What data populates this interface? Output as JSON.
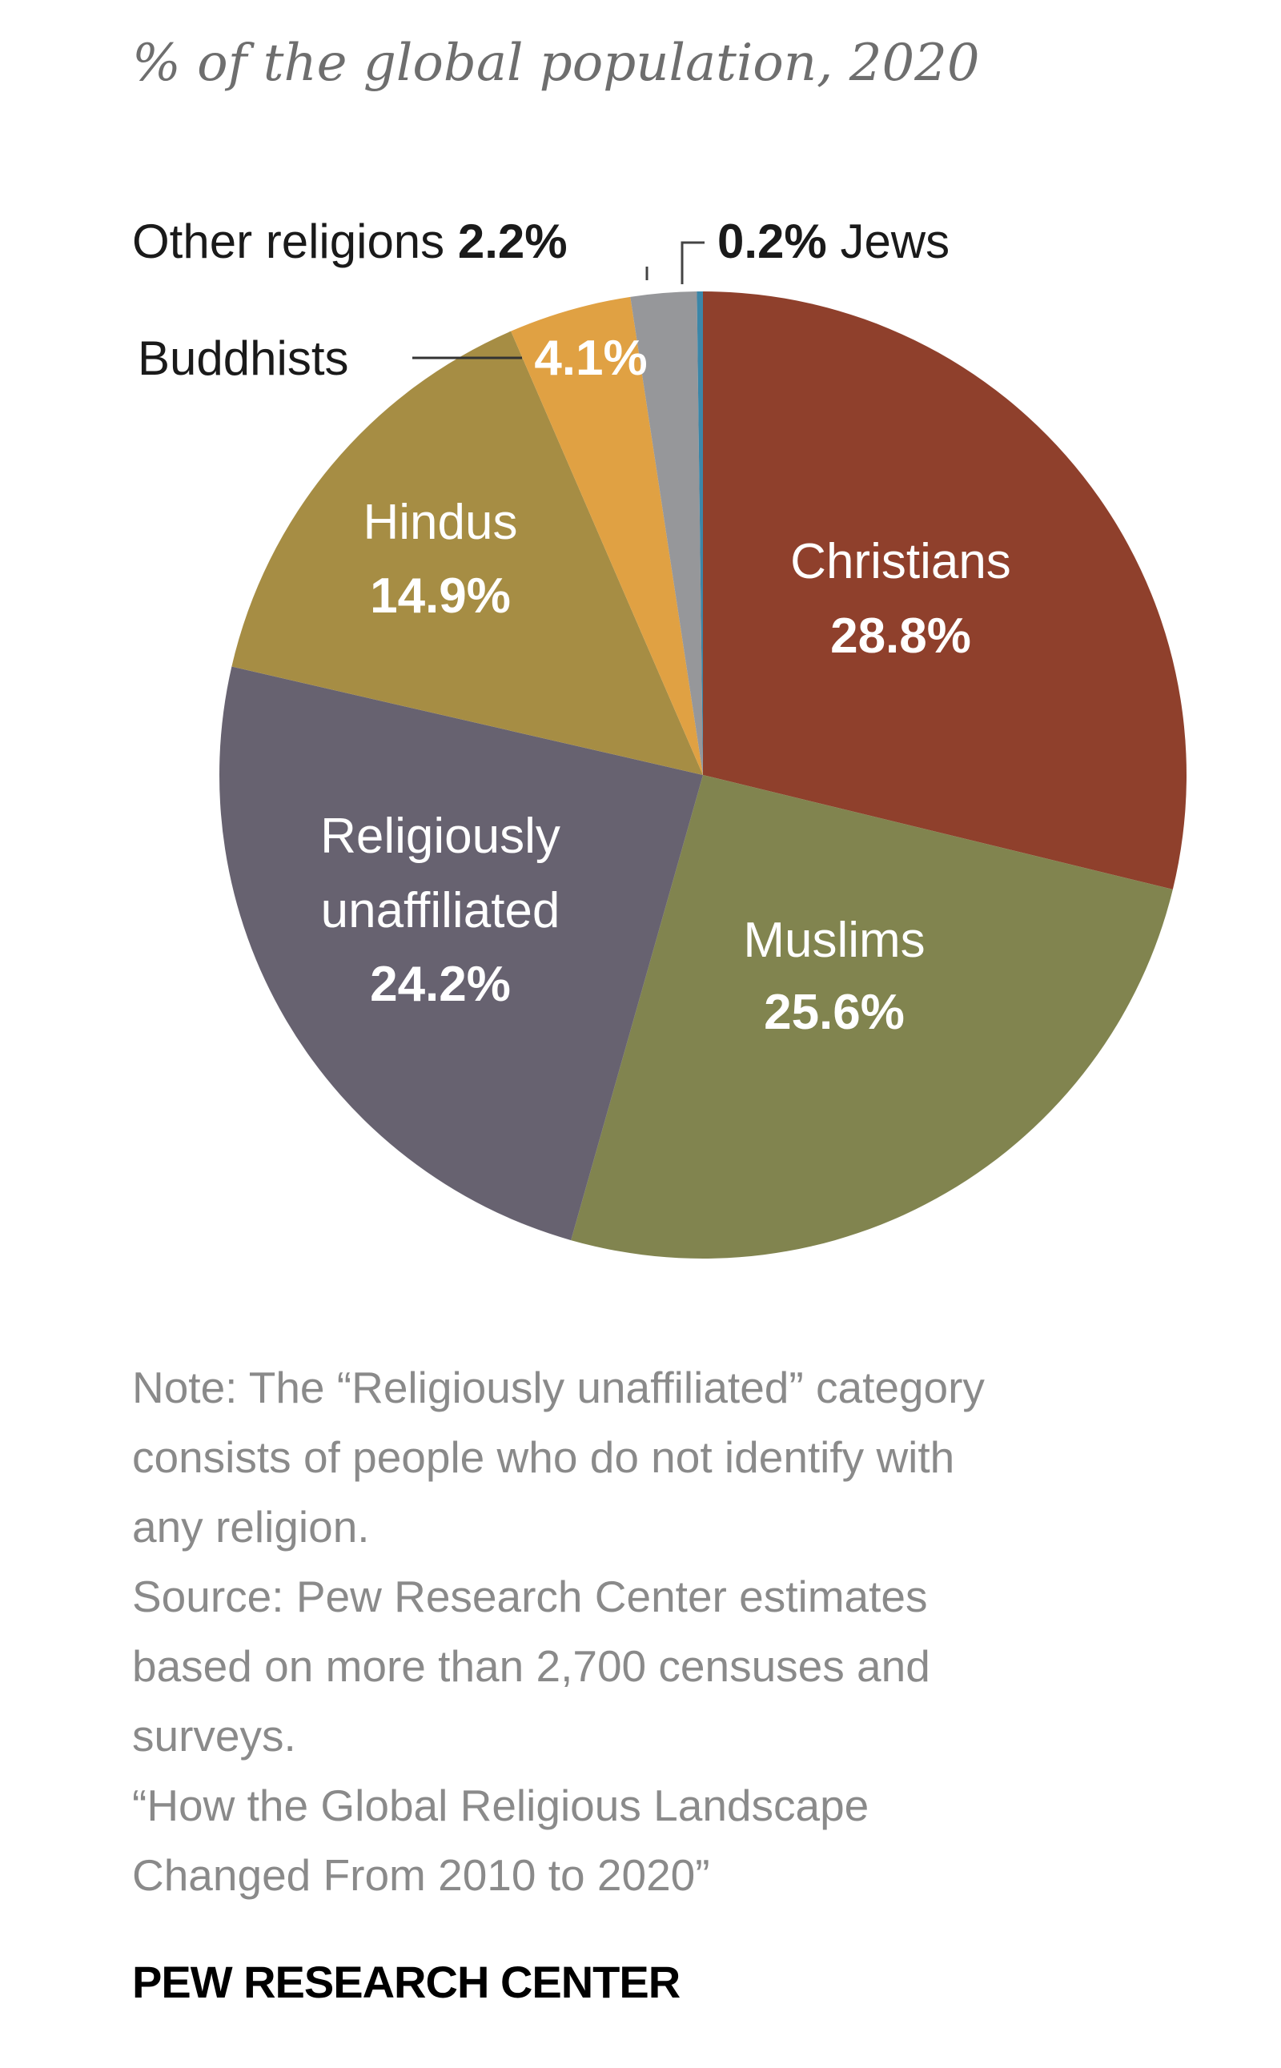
{
  "chart_data": {
    "type": "pie",
    "title": "% of the global population, 2020",
    "slices": [
      {
        "name": "Christians",
        "value": 28.8,
        "label": "28.8%",
        "color": "#8f402c"
      },
      {
        "name": "Muslims",
        "value": 25.6,
        "label": "25.6%",
        "color": "#81844f"
      },
      {
        "name": "Religiously unaffiliated",
        "value": 24.2,
        "label": "24.2%",
        "color": "#676270"
      },
      {
        "name": "Hindus",
        "value": 14.9,
        "label": "14.9%",
        "color": "#a68d44"
      },
      {
        "name": "Buddhists",
        "value": 4.1,
        "label": "4.1%",
        "color": "#e0a143"
      },
      {
        "name": "Other religions",
        "value": 2.2,
        "label": "2.2%",
        "color": "#96979a"
      },
      {
        "name": "Jews",
        "value": 0.2,
        "label": "0.2%",
        "color": "#3b86a8"
      }
    ],
    "label_lines": {
      "unaffiliated_1": "Religiously",
      "unaffiliated_2": "unaffiliated"
    }
  },
  "notes": {
    "lines": [
      "Note: The “Religiously unaffiliated” category",
      "consists of people who do not identify with",
      "any religion.",
      "Source: Pew Research Center estimates",
      "based on more than 2,700 censuses and",
      "surveys.",
      "“How the Global Religious Landscape",
      "Changed From 2010 to 2020”"
    ],
    "brand": "PEW RESEARCH CENTER"
  }
}
